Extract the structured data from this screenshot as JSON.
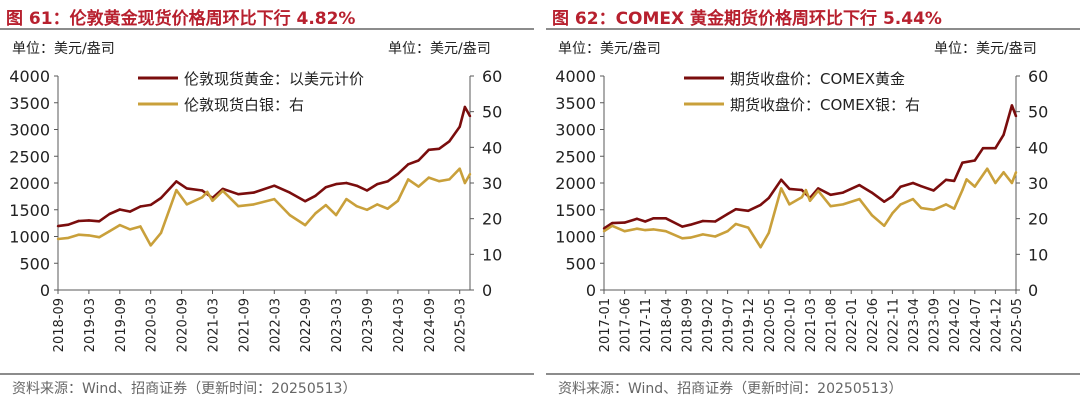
{
  "colors": {
    "title": "#b7202e",
    "gold": "#7a0d0d",
    "silver": "#c9a03b",
    "axis": "#595959",
    "rule": "#8c8c8c"
  },
  "panels": [
    {
      "title": "图 61：伦敦黄金现货价格周环比下行 4.82%",
      "unit_left": "单位：美元/盎司",
      "unit_right": "单位：美元/盎司",
      "source": "资料来源：Wind、招商证券（更新时间：20250513）"
    },
    {
      "title": "图 62：COMEX 黄金期货价格周环比下行 5.44%",
      "unit_left": "单位：美元/盎司",
      "unit_right": "单位：美元/盎司",
      "source": "资料来源：Wind、招商证券（更新时间：20250513）"
    }
  ],
  "chart_data": [
    {
      "type": "line",
      "x_type": "date",
      "x_range": [
        "2018-09",
        "2025-05"
      ],
      "x_tick_labels": [
        "2018-09",
        "2019-03",
        "2019-09",
        "2020-03",
        "2020-09",
        "2021-03",
        "2021-09",
        "2022-03",
        "2022-09",
        "2023-03",
        "2023-09",
        "2024-03",
        "2024-09",
        "2025-03"
      ],
      "y_left": {
        "range": [
          0,
          4000
        ],
        "ticks": [
          0,
          500,
          1000,
          1500,
          2000,
          2500,
          3000,
          3500,
          4000
        ]
      },
      "y_right": {
        "range": [
          0,
          60
        ],
        "ticks": [
          0,
          10,
          20,
          30,
          40,
          50,
          60
        ]
      },
      "grid": false,
      "legend_position": "top-left",
      "series": [
        {
          "name": "伦敦现货黄金：以美元计价",
          "axis": "left",
          "points": [
            [
              "2018-09",
              1195
            ],
            [
              "2018-11",
              1220
            ],
            [
              "2019-01",
              1290
            ],
            [
              "2019-03",
              1300
            ],
            [
              "2019-05",
              1285
            ],
            [
              "2019-07",
              1420
            ],
            [
              "2019-09",
              1505
            ],
            [
              "2019-11",
              1465
            ],
            [
              "2020-01",
              1560
            ],
            [
              "2020-03",
              1590
            ],
            [
              "2020-05",
              1720
            ],
            [
              "2020-08",
              2030
            ],
            [
              "2020-10",
              1900
            ],
            [
              "2021-01",
              1860
            ],
            [
              "2021-03",
              1720
            ],
            [
              "2021-05",
              1890
            ],
            [
              "2021-08",
              1790
            ],
            [
              "2021-11",
              1820
            ],
            [
              "2022-03",
              1950
            ],
            [
              "2022-06",
              1820
            ],
            [
              "2022-09",
              1660
            ],
            [
              "2022-11",
              1760
            ],
            [
              "2023-01",
              1920
            ],
            [
              "2023-03",
              1980
            ],
            [
              "2023-05",
              2000
            ],
            [
              "2023-07",
              1950
            ],
            [
              "2023-09",
              1860
            ],
            [
              "2023-11",
              1980
            ],
            [
              "2024-01",
              2030
            ],
            [
              "2024-03",
              2170
            ],
            [
              "2024-05",
              2350
            ],
            [
              "2024-07",
              2420
            ],
            [
              "2024-09",
              2620
            ],
            [
              "2024-11",
              2640
            ],
            [
              "2025-01",
              2780
            ],
            [
              "2025-03",
              3050
            ],
            [
              "2025-04",
              3420
            ],
            [
              "2025-05",
              3250
            ]
          ]
        },
        {
          "name": "伦敦现货白银：右",
          "axis": "right",
          "points": [
            [
              "2018-09",
              14.3
            ],
            [
              "2018-11",
              14.6
            ],
            [
              "2019-01",
              15.5
            ],
            [
              "2019-03",
              15.3
            ],
            [
              "2019-05",
              14.8
            ],
            [
              "2019-07",
              16.5
            ],
            [
              "2019-09",
              18.2
            ],
            [
              "2019-11",
              17.0
            ],
            [
              "2020-01",
              17.8
            ],
            [
              "2020-03",
              12.5
            ],
            [
              "2020-05",
              16.0
            ],
            [
              "2020-08",
              28.0
            ],
            [
              "2020-10",
              24.0
            ],
            [
              "2021-01",
              26.0
            ],
            [
              "2021-02",
              27.5
            ],
            [
              "2021-03",
              25.0
            ],
            [
              "2021-05",
              27.8
            ],
            [
              "2021-08",
              23.5
            ],
            [
              "2021-11",
              24.0
            ],
            [
              "2022-03",
              25.5
            ],
            [
              "2022-06",
              21.0
            ],
            [
              "2022-09",
              18.2
            ],
            [
              "2022-11",
              21.5
            ],
            [
              "2023-01",
              23.8
            ],
            [
              "2023-03",
              21.0
            ],
            [
              "2023-05",
              25.5
            ],
            [
              "2023-07",
              23.5
            ],
            [
              "2023-09",
              22.5
            ],
            [
              "2023-11",
              24.0
            ],
            [
              "2024-01",
              22.8
            ],
            [
              "2024-03",
              25.0
            ],
            [
              "2024-05",
              31.0
            ],
            [
              "2024-07",
              29.0
            ],
            [
              "2024-09",
              31.5
            ],
            [
              "2024-11",
              30.5
            ],
            [
              "2025-01",
              31.0
            ],
            [
              "2025-03",
              34.0
            ],
            [
              "2025-04",
              30.0
            ],
            [
              "2025-05",
              32.5
            ]
          ]
        }
      ]
    },
    {
      "type": "line",
      "x_type": "date",
      "x_range": [
        "2017-01",
        "2025-05"
      ],
      "x_tick_labels": [
        "2017-01",
        "2017-06",
        "2017-11",
        "2018-04",
        "2018-09",
        "2019-02",
        "2019-07",
        "2019-12",
        "2020-05",
        "2020-10",
        "2021-03",
        "2021-08",
        "2022-01",
        "2022-06",
        "2022-11",
        "2023-04",
        "2023-09",
        "2024-02",
        "2024-07",
        "2024-12",
        "2025-05"
      ],
      "y_left": {
        "range": [
          0,
          4000
        ],
        "ticks": [
          0,
          500,
          1000,
          1500,
          2000,
          2500,
          3000,
          3500,
          4000
        ]
      },
      "y_right": {
        "range": [
          0,
          60
        ],
        "ticks": [
          0,
          10,
          20,
          30,
          40,
          50,
          60
        ]
      },
      "grid": false,
      "legend_position": "top-left",
      "series": [
        {
          "name": "期货收盘价：COMEX黄金",
          "axis": "left",
          "points": [
            [
              "2017-01",
              1150
            ],
            [
              "2017-03",
              1250
            ],
            [
              "2017-06",
              1260
            ],
            [
              "2017-09",
              1330
            ],
            [
              "2017-11",
              1280
            ],
            [
              "2018-01",
              1340
            ],
            [
              "2018-04",
              1340
            ],
            [
              "2018-08",
              1185
            ],
            [
              "2018-10",
              1220
            ],
            [
              "2019-01",
              1290
            ],
            [
              "2019-04",
              1280
            ],
            [
              "2019-07",
              1420
            ],
            [
              "2019-09",
              1510
            ],
            [
              "2019-12",
              1480
            ],
            [
              "2020-03",
              1590
            ],
            [
              "2020-05",
              1720
            ],
            [
              "2020-08",
              2060
            ],
            [
              "2020-10",
              1890
            ],
            [
              "2021-01",
              1870
            ],
            [
              "2021-03",
              1720
            ],
            [
              "2021-05",
              1900
            ],
            [
              "2021-08",
              1780
            ],
            [
              "2021-11",
              1820
            ],
            [
              "2022-03",
              1960
            ],
            [
              "2022-06",
              1820
            ],
            [
              "2022-09",
              1650
            ],
            [
              "2022-11",
              1750
            ],
            [
              "2023-01",
              1930
            ],
            [
              "2023-04",
              2000
            ],
            [
              "2023-06",
              1940
            ],
            [
              "2023-09",
              1860
            ],
            [
              "2023-12",
              2060
            ],
            [
              "2024-02",
              2040
            ],
            [
              "2024-04",
              2380
            ],
            [
              "2024-07",
              2420
            ],
            [
              "2024-09",
              2650
            ],
            [
              "2024-12",
              2650
            ],
            [
              "2025-02",
              2900
            ],
            [
              "2025-04",
              3450
            ],
            [
              "2025-05",
              3250
            ]
          ]
        },
        {
          "name": "期货收盘价：COMEX银：右",
          "axis": "right",
          "points": [
            [
              "2017-01",
              16.5
            ],
            [
              "2017-03",
              18.0
            ],
            [
              "2017-06",
              16.5
            ],
            [
              "2017-09",
              17.2
            ],
            [
              "2017-11",
              16.8
            ],
            [
              "2018-01",
              17.0
            ],
            [
              "2018-04",
              16.5
            ],
            [
              "2018-08",
              14.5
            ],
            [
              "2018-10",
              14.7
            ],
            [
              "2019-01",
              15.6
            ],
            [
              "2019-04",
              15.0
            ],
            [
              "2019-07",
              16.5
            ],
            [
              "2019-09",
              18.5
            ],
            [
              "2019-12",
              17.5
            ],
            [
              "2020-03",
              12.0
            ],
            [
              "2020-05",
              16.0
            ],
            [
              "2020-08",
              28.5
            ],
            [
              "2020-10",
              24.0
            ],
            [
              "2021-01",
              26.0
            ],
            [
              "2021-02",
              28.0
            ],
            [
              "2021-03",
              25.0
            ],
            [
              "2021-05",
              27.8
            ],
            [
              "2021-08",
              23.5
            ],
            [
              "2021-11",
              24.0
            ],
            [
              "2022-03",
              25.5
            ],
            [
              "2022-06",
              21.0
            ],
            [
              "2022-09",
              18.0
            ],
            [
              "2022-11",
              21.5
            ],
            [
              "2023-01",
              24.0
            ],
            [
              "2023-04",
              25.5
            ],
            [
              "2023-06",
              23.0
            ],
            [
              "2023-09",
              22.5
            ],
            [
              "2023-12",
              24.0
            ],
            [
              "2024-02",
              22.8
            ],
            [
              "2024-04",
              28.0
            ],
            [
              "2024-05",
              31.0
            ],
            [
              "2024-07",
              29.0
            ],
            [
              "2024-10",
              34.0
            ],
            [
              "2024-12",
              30.0
            ],
            [
              "2025-02",
              33.0
            ],
            [
              "2025-04",
              30.0
            ],
            [
              "2025-05",
              33.0
            ]
          ]
        }
      ]
    }
  ]
}
